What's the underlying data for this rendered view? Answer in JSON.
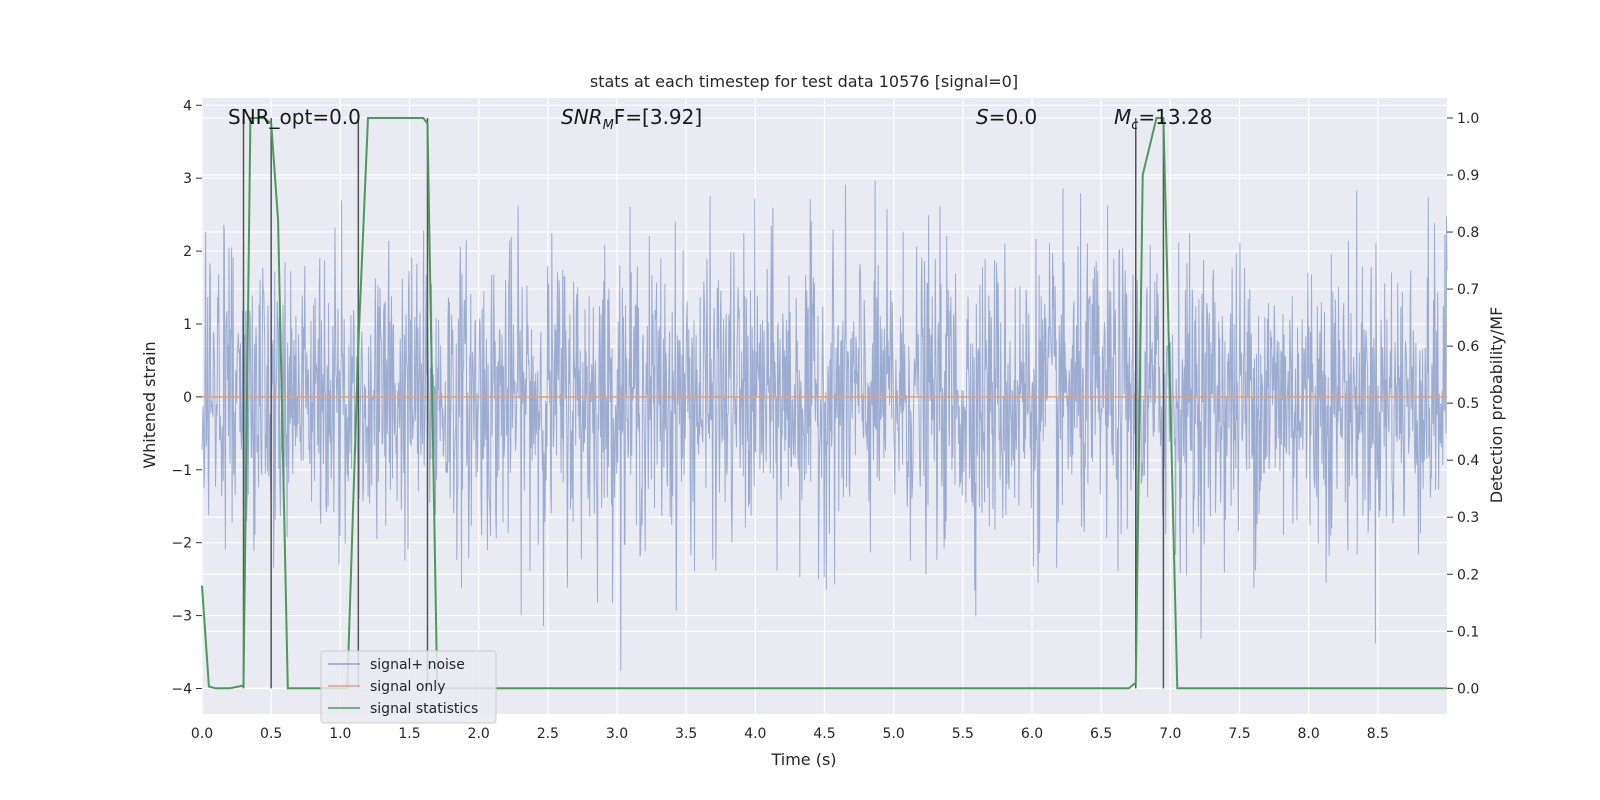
{
  "chart_data": {
    "type": "line",
    "title": "stats at each timestep for test data 10576 [signal=0]",
    "xlabel": "Time (s)",
    "ylabel": "Whitened strain",
    "ylabel_right": "Detection probability/MF",
    "xlim": [
      0,
      9.0
    ],
    "ylim": [
      -4.35,
      4.1
    ],
    "ylim_right": [
      -0.045,
      1.035
    ],
    "grid": true,
    "legend": {
      "placement": "lower-left"
    },
    "x_ticks": [
      "0.0",
      "0.5",
      "1.0",
      "1.5",
      "2.0",
      "2.5",
      "3.0",
      "3.5",
      "4.0",
      "4.5",
      "5.0",
      "5.5",
      "6.0",
      "6.5",
      "7.0",
      "7.5",
      "8.0",
      "8.5"
    ],
    "y_ticks": [
      "4",
      "3",
      "2",
      "1",
      "0",
      "−1",
      "−2",
      "−3",
      "−4"
    ],
    "y_ticks_right": [
      "1.0",
      "0.9",
      "0.8",
      "0.7",
      "0.6",
      "0.5",
      "0.4",
      "0.3",
      "0.2",
      "0.1",
      "0.0"
    ],
    "annotations": {
      "snr_opt": "SNR_opt=0.0",
      "snr_mf_sym": "SNR",
      "snr_mf_sub": "M",
      "snr_mf_val": "F=[3.92]",
      "s_sym": "S",
      "s_val": "=0.0",
      "mc_sym": "M",
      "mc_sub": "c",
      "mc_val": "=13.28"
    },
    "vlines": [
      0.3,
      0.5,
      1.13,
      1.63,
      6.75,
      6.95
    ],
    "series": [
      {
        "name": "signal+ noise",
        "color": "#8da0cb",
        "kind": "noise",
        "amplitude_std": 1.0,
        "x_range": [
          0,
          9.0
        ]
      },
      {
        "name": "signal only",
        "color": "#e5a07a",
        "kind": "constant",
        "value": 0.0
      },
      {
        "name": "signal statistics",
        "color": "#4c9a5a",
        "axis": "right",
        "x": [
          0.0,
          0.05,
          0.1,
          0.2,
          0.3,
          0.35,
          0.45,
          0.5,
          0.55,
          0.62,
          1.05,
          1.13,
          1.2,
          1.6,
          1.63,
          1.7,
          6.0,
          6.7,
          6.75,
          6.8,
          6.9,
          6.95,
          7.05,
          9.0
        ],
        "values": [
          0.18,
          0.003,
          0.0,
          0.0,
          0.005,
          1.0,
          1.0,
          0.99,
          0.82,
          0.0,
          0.0,
          0.6,
          1.0,
          1.0,
          0.99,
          0.0,
          0.0,
          0.0,
          0.01,
          0.9,
          1.0,
          1.0,
          0.0,
          0.0
        ]
      }
    ]
  }
}
